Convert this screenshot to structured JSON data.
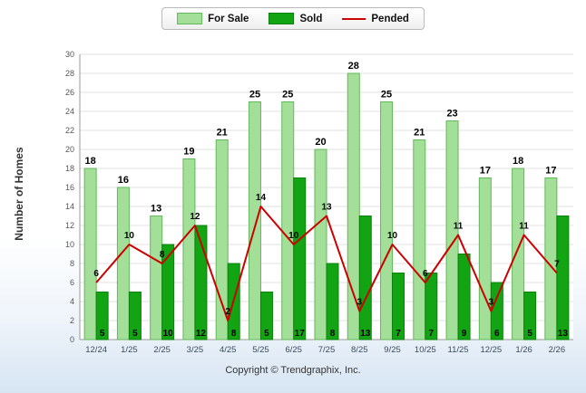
{
  "chart_data": {
    "type": "bar",
    "title": "",
    "categories": [
      "12/24",
      "1/25",
      "2/25",
      "3/25",
      "4/25",
      "5/25",
      "6/25",
      "7/25",
      "8/25",
      "9/25",
      "10/25",
      "11/25",
      "12/25",
      "1/26",
      "2/26"
    ],
    "series": [
      {
        "name": "For Sale",
        "type": "bar",
        "color": "#A3DF98",
        "border": "#62B95A",
        "values": [
          18,
          16,
          13,
          19,
          21,
          25,
          25,
          20,
          28,
          25,
          21,
          23,
          17,
          18,
          17
        ]
      },
      {
        "name": "Sold",
        "type": "bar",
        "color": "#12A412",
        "border": "#0C800C",
        "values": [
          5,
          5,
          10,
          12,
          8,
          5,
          17,
          8,
          13,
          7,
          7,
          9,
          6,
          5,
          13
        ]
      },
      {
        "name": "Pended",
        "type": "line",
        "color": "#CC0000",
        "values": [
          6,
          10,
          8,
          12,
          2,
          14,
          10,
          13,
          3,
          10,
          6,
          11,
          3,
          11,
          7
        ]
      }
    ],
    "xlabel": "",
    "ylabel": "Number of Homes",
    "ylim": [
      0,
      30
    ],
    "ytick_step": 2,
    "grid": true,
    "legend_position": "top",
    "colors": {
      "gridline": "#e2e2e2",
      "axis": "#999999",
      "label_text": "#000000",
      "x_tick_text": "#3a4a5e",
      "y_tick_text": "#555555"
    }
  },
  "footer": {
    "copyright": "Copyright © Trendgraphix, Inc."
  }
}
